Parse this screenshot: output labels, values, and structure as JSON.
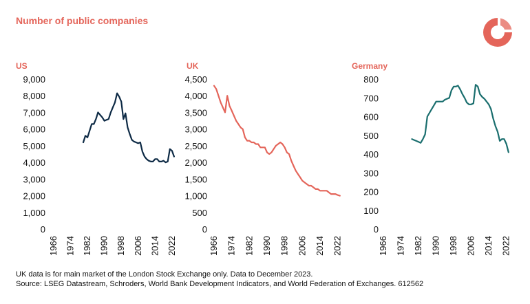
{
  "header": {
    "title": "Number of public companies",
    "accent_color": "#e4655a"
  },
  "logo": {
    "icon": "ring-logo-icon",
    "color": "#e4655a"
  },
  "footer": {
    "line1": "UK data is for main market  of the London Stock Exchange only. Data to December 2023.",
    "line2": "Source: LSEG Datastream, Schroders, World Bank Development Indicators, and World Federation of Exchanges. 612562"
  },
  "chart_data": [
    {
      "type": "line",
      "title": "US",
      "color": "#0d2a45",
      "xlabel": "",
      "ylabel": "",
      "xlim": [
        1966,
        2024
      ],
      "ylim": [
        0,
        9000
      ],
      "yticks": [
        0,
        1000,
        2000,
        3000,
        4000,
        5000,
        6000,
        7000,
        8000,
        9000
      ],
      "ytick_labels": [
        "0",
        "1,000",
        "2,000",
        "3,000",
        "4,000",
        "5,000",
        "6,000",
        "7,000",
        "8,000",
        "9,000"
      ],
      "xticks": [
        1966,
        1974,
        1982,
        1990,
        1998,
        2006,
        2014,
        2022
      ],
      "xtick_labels": [
        "1966",
        "1974",
        "1982",
        "1990",
        "1998",
        "2006",
        "2014",
        "2022"
      ],
      "series": [
        {
          "x": [
            1980,
            1981,
            1982,
            1983,
            1984,
            1985,
            1986,
            1987,
            1988,
            1989,
            1990,
            1991,
            1992,
            1993,
            1994,
            1995,
            1996,
            1997,
            1998,
            1999,
            2000,
            2001,
            2002,
            2003,
            2004,
            2005,
            2006,
            2007,
            2008,
            2009,
            2010,
            2011,
            2012,
            2013,
            2014,
            2015,
            2016,
            2017,
            2018,
            2019,
            2020,
            2021,
            2022,
            2023
          ],
          "values": [
            5200,
            5600,
            5500,
            5900,
            6300,
            6300,
            6600,
            7000,
            6850,
            6700,
            6500,
            6550,
            6600,
            7000,
            7300,
            7600,
            8150,
            7950,
            7650,
            6600,
            6950,
            6100,
            5700,
            5350,
            5250,
            5200,
            5150,
            5200,
            4650,
            4350,
            4200,
            4100,
            4050,
            4050,
            4200,
            4200,
            4050,
            4050,
            4100,
            4000,
            4050,
            4800,
            4700,
            4350
          ]
        }
      ]
    },
    {
      "type": "line",
      "title": "UK",
      "color": "#e4655a",
      "xlabel": "",
      "ylabel": "",
      "xlim": [
        1966,
        2024
      ],
      "ylim": [
        0,
        4500
      ],
      "yticks": [
        0,
        500,
        1000,
        1500,
        2000,
        2500,
        3000,
        3500,
        4000,
        4500
      ],
      "ytick_labels": [
        "0",
        "500",
        "1,000",
        "1,500",
        "2,000",
        "2,500",
        "3,000",
        "3,500",
        "4,000",
        "4,500"
      ],
      "xticks": [
        1966,
        1974,
        1982,
        1990,
        1998,
        2006,
        2014,
        2022
      ],
      "xtick_labels": [
        "1966",
        "1974",
        "1982",
        "1990",
        "1998",
        "2006",
        "2014",
        "2022"
      ],
      "series": [
        {
          "x": [
            1966,
            1967,
            1968,
            1969,
            1970,
            1971,
            1972,
            1973,
            1974,
            1975,
            1976,
            1977,
            1978,
            1979,
            1980,
            1981,
            1982,
            1983,
            1984,
            1985,
            1986,
            1987,
            1988,
            1989,
            1990,
            1991,
            1992,
            1993,
            1994,
            1995,
            1996,
            1997,
            1998,
            1999,
            2000,
            2001,
            2002,
            2003,
            2004,
            2005,
            2006,
            2007,
            2008,
            2009,
            2010,
            2011,
            2012,
            2013,
            2014,
            2015,
            2016,
            2017,
            2018,
            2019,
            2020,
            2021,
            2022,
            2023
          ],
          "values": [
            4300,
            4200,
            4000,
            3800,
            3650,
            3500,
            4000,
            3700,
            3550,
            3400,
            3250,
            3150,
            3050,
            3000,
            2750,
            2650,
            2650,
            2600,
            2600,
            2550,
            2550,
            2450,
            2450,
            2450,
            2300,
            2250,
            2300,
            2400,
            2500,
            2550,
            2600,
            2550,
            2450,
            2300,
            2250,
            2050,
            1900,
            1750,
            1650,
            1550,
            1450,
            1400,
            1350,
            1300,
            1300,
            1250,
            1200,
            1200,
            1150,
            1150,
            1150,
            1150,
            1100,
            1050,
            1050,
            1050,
            1020,
            1000
          ]
        }
      ]
    },
    {
      "type": "line",
      "title": "Germany",
      "color": "#1a6e6e",
      "xlabel": "",
      "ylabel": "",
      "xlim": [
        1966,
        2024
      ],
      "ylim": [
        0,
        800
      ],
      "yticks": [
        0,
        100,
        200,
        300,
        400,
        500,
        600,
        700,
        800
      ],
      "ytick_labels": [
        "0",
        "100",
        "200",
        "300",
        "400",
        "500",
        "600",
        "700",
        "800"
      ],
      "xticks": [
        1966,
        1974,
        1982,
        1990,
        1998,
        2006,
        2014,
        2022
      ],
      "xtick_labels": [
        "1966",
        "1974",
        "1982",
        "1990",
        "1998",
        "2006",
        "2014",
        "2022"
      ],
      "series": [
        {
          "x": [
            1979,
            1980,
            1981,
            1982,
            1983,
            1984,
            1985,
            1986,
            1987,
            1988,
            1989,
            1990,
            1991,
            1992,
            1993,
            1994,
            1995,
            1996,
            1997,
            1998,
            1999,
            2000,
            2001,
            2002,
            2003,
            2004,
            2005,
            2006,
            2007,
            2008,
            2009,
            2010,
            2011,
            2012,
            2013,
            2014,
            2015,
            2016,
            2017,
            2018,
            2019,
            2020,
            2021,
            2022,
            2023
          ],
          "values": [
            480,
            475,
            470,
            465,
            460,
            480,
            505,
            600,
            620,
            640,
            660,
            680,
            680,
            680,
            680,
            690,
            695,
            700,
            740,
            760,
            760,
            765,
            745,
            720,
            700,
            675,
            665,
            665,
            670,
            770,
            760,
            720,
            705,
            695,
            680,
            665,
            640,
            590,
            550,
            520,
            470,
            480,
            480,
            455,
            410
          ]
        }
      ]
    }
  ]
}
